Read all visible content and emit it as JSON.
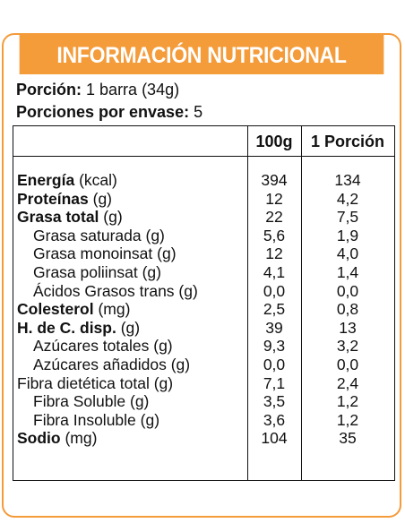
{
  "title": "INFORMACIÓN NUTRICIONAL",
  "serving": {
    "portion_label": "Porción:",
    "portion_value": "1 barra (34g)",
    "per_pack_label": "Porciones por envase:",
    "per_pack_value": "5"
  },
  "columns": {
    "per_100g": "100g",
    "per_portion": "1 Porción"
  },
  "nutrients": [
    {
      "name": "Energía",
      "unit": " (kcal)",
      "bold": true,
      "indent": false,
      "per_100g": "394",
      "per_portion": "134"
    },
    {
      "name": "Proteínas",
      "unit": " (g)",
      "bold": true,
      "indent": false,
      "per_100g": "12",
      "per_portion": "4,2"
    },
    {
      "name": "Grasa total",
      "unit": " (g)",
      "bold": true,
      "indent": false,
      "per_100g": "22",
      "per_portion": "7,5"
    },
    {
      "name": "Grasa saturada",
      "unit": " (g)",
      "bold": false,
      "indent": true,
      "per_100g": "5,6",
      "per_portion": "1,9"
    },
    {
      "name": "Grasa monoinsat",
      "unit": " (g)",
      "bold": false,
      "indent": true,
      "per_100g": "12",
      "per_portion": "4,0"
    },
    {
      "name": "Grasa poliinsat",
      "unit": " (g)",
      "bold": false,
      "indent": true,
      "per_100g": "4,1",
      "per_portion": "1,4"
    },
    {
      "name": "Ácidos Grasos trans",
      "unit": " (g)",
      "bold": false,
      "indent": true,
      "per_100g": "0,0",
      "per_portion": "0,0"
    },
    {
      "name": "Colesterol",
      "unit": " (mg)",
      "bold": true,
      "indent": false,
      "per_100g": "2,5",
      "per_portion": "0,8"
    },
    {
      "name": "H. de C. disp.",
      "unit": " (g)",
      "bold": true,
      "indent": false,
      "per_100g": "39",
      "per_portion": "13"
    },
    {
      "name": "Azúcares totales",
      "unit": " (g)",
      "bold": false,
      "indent": true,
      "per_100g": "9,3",
      "per_portion": "3,2"
    },
    {
      "name": "Azúcares añadidos",
      "unit": " (g)",
      "bold": false,
      "indent": true,
      "per_100g": "0,0",
      "per_portion": "0,0"
    },
    {
      "name": "Fibra dietética total",
      "unit": " (g)",
      "bold": false,
      "indent": false,
      "per_100g": "7,1",
      "per_portion": "2,4"
    },
    {
      "name": "Fibra Soluble",
      "unit": " (g)",
      "bold": false,
      "indent": true,
      "per_100g": "3,5",
      "per_portion": "1,2"
    },
    {
      "name": "Fibra Insoluble",
      "unit": " (g)",
      "bold": false,
      "indent": true,
      "per_100g": "3,6",
      "per_portion": "1,2"
    },
    {
      "name": "Sodio",
      "unit": " (mg)",
      "bold": true,
      "indent": false,
      "per_100g": "104",
      "per_portion": "35"
    }
  ],
  "colors": {
    "accent": "#f49b3a",
    "text": "#111111"
  }
}
